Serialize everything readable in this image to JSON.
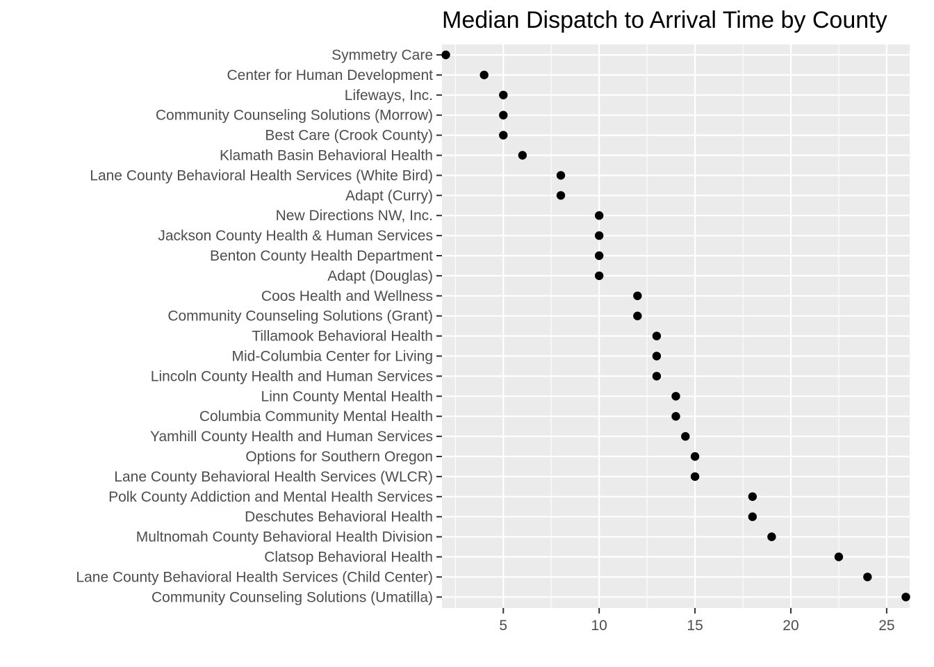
{
  "chart_data": {
    "type": "scatter",
    "title": "Median Dispatch to Arrival Time by County",
    "xlabel": "",
    "ylabel": "",
    "xlim": [
      1.8,
      26.2
    ],
    "x_ticks": [
      5,
      10,
      15,
      20,
      25
    ],
    "x_tick_labels": [
      "5",
      "10",
      "15",
      "20",
      "25"
    ],
    "grid": true,
    "categories": [
      "Symmetry Care",
      "Center for Human Development",
      "Lifeways, Inc.",
      "Community Counseling Solutions (Morrow)",
      "Best Care (Crook County)",
      "Klamath Basin Behavioral Health",
      "Lane County Behavioral Health Services (White Bird)",
      "Adapt (Curry)",
      "New Directions NW, Inc.",
      "Jackson County Health & Human Services",
      "Benton County Health Department",
      "Adapt (Douglas)",
      "Coos Health and Wellness",
      "Community Counseling Solutions (Grant)",
      "Tillamook Behavioral Health",
      "Mid-Columbia Center for Living",
      "Lincoln County Health and Human Services",
      "Linn County Mental Health",
      "Columbia Community Mental Health",
      "Yamhill County Health and Human Services",
      "Options for Southern Oregon",
      "Lane County Behavioral Health Services (WLCR)",
      "Polk County Addiction and Mental Health Services",
      "Deschutes Behavioral Health",
      "Multnomah County Behavioral Health Division",
      "Clatsop Behavioral Health",
      "Lane County Behavioral Health Services (Child Center)",
      "Community Counseling Solutions (Umatilla)"
    ],
    "values": [
      2,
      4,
      5,
      5,
      5,
      6,
      8,
      8,
      10,
      10,
      10,
      10,
      12,
      12,
      13,
      13,
      13,
      14,
      14,
      14.5,
      15,
      15,
      18,
      18,
      19,
      22.5,
      24,
      26
    ],
    "colors": {
      "panel": "#ebebeb",
      "grid": "#ffffff",
      "point": "#000000",
      "axis_text": "#4d4d4d"
    }
  }
}
